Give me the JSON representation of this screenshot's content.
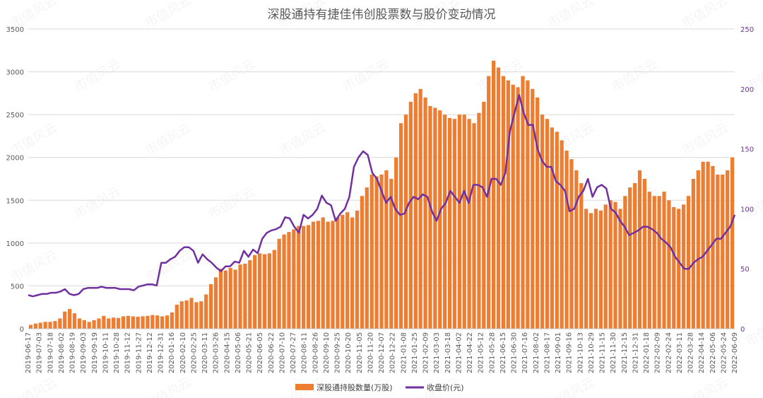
{
  "chart_data": {
    "type": "bar+line",
    "title": "深股通持有捷佳伟创股票数与股价变动情况",
    "watermark": "市值风云",
    "xlabel": "",
    "ylabel": "",
    "y_left": {
      "min": 0,
      "max": 3500,
      "ticks": [
        0,
        500,
        1000,
        1500,
        2000,
        2500,
        3000,
        3500
      ]
    },
    "y_right": {
      "min": 0,
      "max": 250,
      "ticks": [
        0,
        50,
        100,
        150,
        200,
        250
      ]
    },
    "x_ticks": [
      "2019-06-17",
      "2019-07-03",
      "2019-07-18",
      "2019-08-02",
      "2019-08-19",
      "2019-09-03",
      "2019-09-19",
      "2019-10-11",
      "2019-10-28",
      "2019-11-12",
      "2019-11-27",
      "2019-12-12",
      "2019-12-31",
      "2020-01-16",
      "2020-02-10",
      "2020-02-25",
      "2020-03-11",
      "2020-03-26",
      "2020-04-15",
      "2020-05-06",
      "2020-05-21",
      "2020-06-05",
      "2020-06-22",
      "2020-07-10",
      "2020-07-27",
      "2020-08-11",
      "2020-08-26",
      "2020-09-10",
      "2020-09-25",
      "2020-10-20",
      "2020-11-05",
      "2020-11-20",
      "2020-12-07",
      "2020-12-22",
      "2021-01-08",
      "2021-01-25",
      "2021-02-09",
      "2021-03-03",
      "2021-03-18",
      "2021-04-02",
      "2021-04-22",
      "2021-05-12",
      "2021-05-28",
      "2021-06-15",
      "2021-06-30",
      "2021-07-16",
      "2021-08-02",
      "2021-08-17",
      "2021-09-01",
      "2021-09-16",
      "2021-10-13",
      "2021-10-29",
      "2021-11-15",
      "2021-11-30",
      "2021-12-15",
      "2021-12-31",
      "2022-01-18",
      "2022-02-09",
      "2022-02-24",
      "2022-03-11",
      "2022-03-28",
      "2022-04-14",
      "2022-05-06",
      "2022-05-24",
      "2022-06-09"
    ],
    "series": [
      {
        "name": "深股通持股数量(万股)",
        "type": "bar",
        "axis": "left",
        "color": "#ED7D31",
        "values": [
          45,
          60,
          70,
          80,
          80,
          90,
          120,
          200,
          230,
          180,
          120,
          100,
          80,
          100,
          120,
          150,
          120,
          130,
          125,
          145,
          150,
          145,
          140,
          145,
          150,
          160,
          155,
          145,
          155,
          190,
          280,
          320,
          330,
          360,
          310,
          320,
          400,
          520,
          600,
          700,
          680,
          710,
          690,
          750,
          760,
          800,
          860,
          880,
          870,
          880,
          920,
          1050,
          1100,
          1130,
          1160,
          1200,
          1200,
          1210,
          1250,
          1260,
          1300,
          1250,
          1260,
          1300,
          1330,
          1360,
          1300,
          1380,
          1550,
          1650,
          1800,
          1780,
          1800,
          1850,
          1750,
          2000,
          2400,
          2500,
          2650,
          2750,
          2800,
          2700,
          2600,
          2580,
          2550,
          2500,
          2460,
          2450,
          2500,
          2500,
          2450,
          2400,
          2520,
          2650,
          2950,
          3130,
          3050,
          2950,
          2900,
          2850,
          2820,
          2950,
          2900,
          2800,
          2700,
          2500,
          2450,
          2350,
          2300,
          2200,
          2080,
          1980,
          1850,
          1700,
          1400,
          1350,
          1400,
          1380,
          1450,
          1500,
          1480,
          1400,
          1550,
          1650,
          1700,
          1850,
          1750,
          1600,
          1550,
          1550,
          1600,
          1500,
          1420,
          1400,
          1450,
          1550,
          1750,
          1850,
          1950,
          1950,
          1900,
          1800,
          1800,
          1850,
          2000
        ]
      },
      {
        "name": "收盘价(元)",
        "type": "line",
        "axis": "right",
        "color": "#7030A0",
        "values": [
          28,
          27,
          28,
          29,
          29,
          30,
          30,
          31,
          33,
          29,
          28,
          29,
          33,
          34,
          34,
          34,
          35,
          34,
          34,
          34,
          33,
          33,
          33,
          32,
          35,
          36,
          37,
          37,
          36,
          55,
          55,
          58,
          60,
          65,
          68,
          68,
          65,
          55,
          62,
          58,
          55,
          51,
          48,
          52,
          52,
          56,
          55,
          65,
          60,
          66,
          63,
          75,
          80,
          82,
          83,
          85,
          93,
          92,
          85,
          80,
          95,
          92,
          95,
          100,
          111,
          105,
          103,
          90,
          96,
          100,
          110,
          135,
          143,
          148,
          145,
          130,
          125,
          115,
          105,
          110,
          100,
          95,
          96,
          105,
          110,
          108,
          112,
          110,
          98,
          90,
          100,
          105,
          115,
          110,
          105,
          115,
          105,
          120,
          120,
          118,
          110,
          125,
          125,
          120,
          130,
          165,
          180,
          195,
          180,
          170,
          170,
          150,
          140,
          135,
          135,
          123,
          120,
          115,
          98,
          100,
          110,
          115,
          125,
          110,
          118,
          120,
          117,
          100,
          97,
          90,
          85,
          78,
          80,
          82,
          85,
          85,
          83,
          80,
          75,
          72,
          68,
          60,
          55,
          50,
          50,
          55,
          58,
          60,
          65,
          70,
          75,
          75,
          80,
          85,
          95
        ]
      }
    ],
    "legend": {
      "position": "bottom-center",
      "entries": [
        "深股通持股数量(万股)",
        "收盘价(元)"
      ]
    }
  }
}
